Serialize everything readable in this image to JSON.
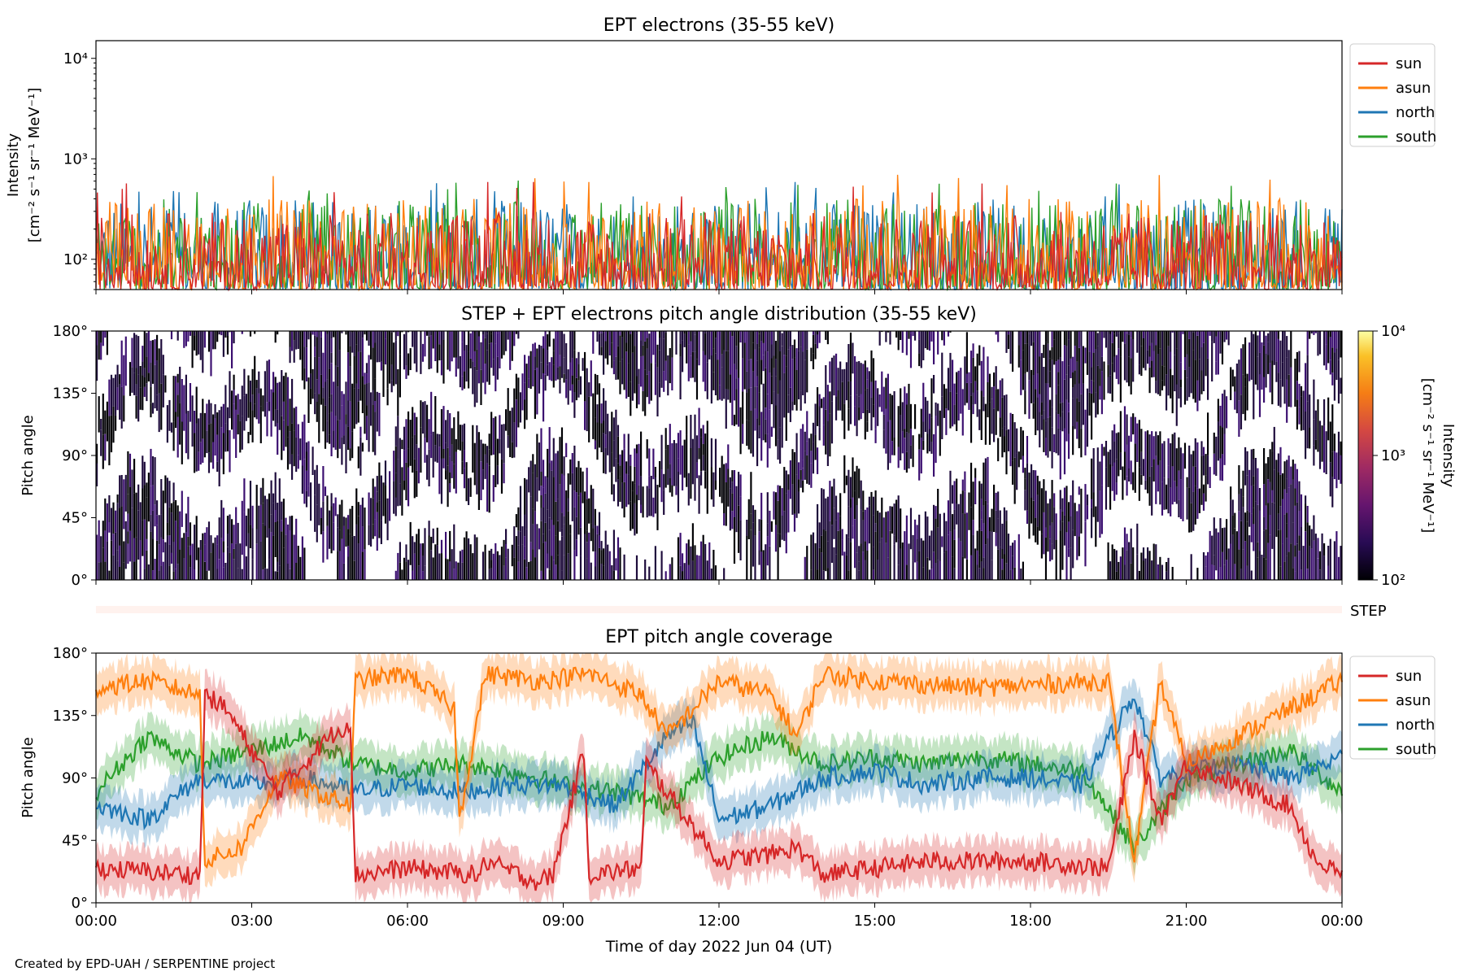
{
  "footer": {
    "credit": "Created by EPD-UAH / SERPENTINE project"
  },
  "chart_data": [
    {
      "type": "line",
      "title": "EPT electrons (35-55 keV)",
      "ylabel": "Intensity",
      "yunit": "[cm⁻² s⁻¹ sr⁻¹ MeV⁻¹]",
      "yscale": "log",
      "ylim": [
        50,
        15000
      ],
      "yticks": [
        "10²",
        "10³",
        "10⁴"
      ],
      "xlim": [
        "2022-06-04 00:00",
        "2022-06-05 00:00"
      ],
      "legend": {
        "placement": "outside-right-top",
        "entries": [
          "sun",
          "asun",
          "north",
          "south"
        ]
      },
      "series": [
        {
          "name": "sun",
          "color": "#d62728",
          "typical_range": [
            50,
            300
          ],
          "max": 600
        },
        {
          "name": "asun",
          "color": "#ff7f0e",
          "typical_range": [
            50,
            400
          ],
          "max": 700
        },
        {
          "name": "north",
          "color": "#1f77b4",
          "typical_range": [
            50,
            400
          ],
          "max": 600
        },
        {
          "name": "south",
          "color": "#2ca02c",
          "typical_range": [
            50,
            400
          ],
          "max": 630
        }
      ]
    },
    {
      "type": "heatmap",
      "title": "STEP + EPT electrons pitch angle distribution (35-55 keV)",
      "ylabel": "Pitch angle",
      "ylim": [
        0,
        180
      ],
      "yticks": [
        "0°",
        "45°",
        "90°",
        "135°",
        "180°"
      ],
      "xlim": [
        "2022-06-04 00:00",
        "2022-06-05 00:00"
      ],
      "colorbar": {
        "label": "Intensity",
        "unit": "[cm⁻² s⁻¹ sr⁻¹ MeV⁻¹]",
        "scale": "log",
        "range": [
          100,
          10000
        ],
        "ticks": [
          "10²",
          "10³",
          "10⁴"
        ],
        "colormap": "inferno"
      },
      "note": "nearly all cells at the colorbar minimum, white gaps where no coverage"
    },
    {
      "type": "strip",
      "label": "STEP",
      "color": "#fff2ee"
    },
    {
      "type": "line",
      "title": "EPT pitch angle coverage",
      "ylabel": "Pitch angle",
      "ylim": [
        0,
        180
      ],
      "yticks": [
        "0°",
        "45°",
        "90°",
        "135°",
        "180°"
      ],
      "xlabel": "Time of day 2022 Jun 04 (UT)",
      "xticks": [
        "00:00",
        "03:00",
        "06:00",
        "09:00",
        "12:00",
        "15:00",
        "18:00",
        "21:00",
        "00:00"
      ],
      "xlim": [
        "2022-06-04 00:00",
        "2022-06-05 00:00"
      ],
      "legend": {
        "placement": "outside-right-top",
        "entries": [
          "sun",
          "asun",
          "north",
          "south"
        ]
      },
      "band_halfwidth_deg": 15,
      "series": [
        {
          "name": "sun",
          "color": "#d62728",
          "hours": [
            0,
            2,
            2.1,
            2.5,
            3.5,
            4.5,
            4.9,
            5,
            6,
            7.4,
            7.5,
            8.5,
            8.8,
            9.4,
            9.5,
            10.5,
            10.6,
            12,
            13,
            13.5,
            14,
            16,
            18,
            19.5,
            20,
            20.5,
            21,
            22,
            23,
            23.5,
            24
          ],
          "pitch_angle": [
            25,
            20,
            150,
            140,
            80,
            120,
            130,
            20,
            25,
            20,
            30,
            15,
            20,
            110,
            20,
            25,
            100,
            30,
            35,
            40,
            20,
            30,
            30,
            25,
            120,
            60,
            100,
            85,
            70,
            30,
            20
          ]
        },
        {
          "name": "asun",
          "color": "#ff7f0e",
          "hours": [
            0,
            1,
            2,
            2.1,
            2.8,
            3.5,
            4.9,
            5,
            6,
            6.9,
            7,
            7.5,
            8.5,
            9.5,
            10.5,
            11,
            12,
            13,
            13.5,
            14,
            15,
            17,
            19.5,
            20,
            20.5,
            21,
            22,
            23,
            24
          ],
          "pitch_angle": [
            155,
            160,
            150,
            30,
            40,
            90,
            70,
            160,
            165,
            140,
            60,
            165,
            160,
            165,
            150,
            120,
            160,
            150,
            120,
            165,
            160,
            155,
            160,
            30,
            160,
            100,
            120,
            140,
            160
          ]
        },
        {
          "name": "north",
          "color": "#1f77b4",
          "hours": [
            0,
            1,
            2,
            3,
            4,
            5,
            6,
            7,
            8,
            9,
            10,
            11,
            11.5,
            12,
            13,
            14,
            15,
            16,
            17,
            18,
            19,
            20,
            20.5,
            21,
            22,
            23,
            24
          ],
          "pitch_angle": [
            70,
            60,
            90,
            85,
            90,
            80,
            85,
            80,
            85,
            85,
            70,
            120,
            130,
            60,
            70,
            90,
            95,
            85,
            90,
            90,
            85,
            150,
            90,
            95,
            100,
            90,
            105
          ]
        },
        {
          "name": "south",
          "color": "#2ca02c",
          "hours": [
            0,
            1,
            2,
            3,
            4,
            5,
            6,
            7,
            8,
            9,
            10,
            11,
            12,
            13,
            14,
            15,
            16,
            17,
            18,
            19,
            20,
            21,
            22,
            23,
            24
          ],
          "pitch_angle": [
            80,
            120,
            100,
            110,
            120,
            100,
            95,
            100,
            95,
            85,
            80,
            70,
            105,
            120,
            100,
            105,
            100,
            105,
            100,
            95,
            40,
            90,
            100,
            110,
            80
          ]
        }
      ]
    }
  ]
}
